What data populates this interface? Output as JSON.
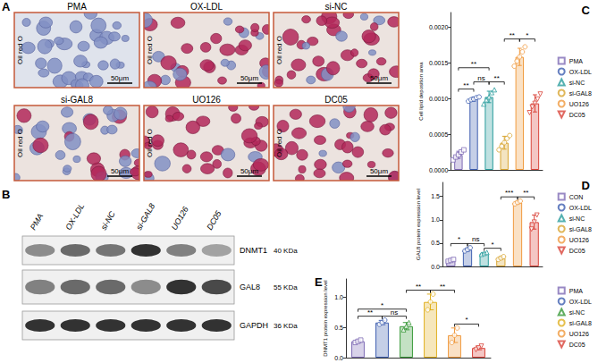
{
  "figure": {
    "A": {
      "label": "A",
      "stain": "Oil red O",
      "scale_bar": "50μm",
      "images": [
        "PMA",
        "OX-LDL",
        "si-NC",
        "si-GAL8",
        "UO126",
        "DC05"
      ]
    },
    "B": {
      "label": "B",
      "lanes": [
        "PMA",
        "OX-LDL",
        "si-NC",
        "si-GAL8",
        "UO126",
        "DC05"
      ],
      "bands": [
        {
          "protein": "DNMT1",
          "size": "40 KDa"
        },
        {
          "protein": "GAL8",
          "size": "55 KDa"
        },
        {
          "protein": "GAPDH",
          "size": "36 KDa"
        }
      ]
    }
  },
  "chart_data": [
    {
      "label": "C",
      "type": "bar",
      "y_label": "Cell lipid deposition area",
      "categories": [
        "PMA",
        "OX-LDL",
        "si-NC",
        "si-GAL8",
        "UO126",
        "DC05"
      ],
      "values": [
        0.00021,
        0.00099,
        0.00102,
        0.00038,
        0.00158,
        0.00093
      ],
      "errors": [
        5e-05,
        3e-05,
        8e-05,
        9e-05,
        0.00012,
        0.00012
      ],
      "points": [
        [
          0.00014,
          0.00018,
          0.00021,
          0.00025,
          0.00028
        ],
        [
          0.00096,
          0.00098,
          0.00099,
          0.00101,
          0.00102
        ],
        [
          0.00092,
          0.00098,
          0.00102,
          0.00108,
          0.00112
        ],
        [
          0.00028,
          0.00033,
          0.00038,
          0.00044,
          0.00048
        ],
        [
          0.00145,
          0.00152,
          0.00158,
          0.00165,
          0.00172
        ],
        [
          0.0008,
          0.00088,
          0.00093,
          0.00099,
          0.00106
        ]
      ],
      "colors": [
        "#7f6bb5",
        "#3f5fb0",
        "#2a9d9d",
        "#d8a531",
        "#f09a3e",
        "#d9433a"
      ],
      "markers": [
        "square",
        "circle",
        "triangle",
        "circle",
        "circle",
        "triangle-down"
      ],
      "ylim": [
        0,
        0.0022
      ],
      "yticks": [
        {
          "value": 0,
          "label": "0.0000"
        },
        0.0005,
        {
          "value": 0.001,
          "label": "0.0010"
        },
        0.0015,
        {
          "value": 0.002,
          "label": "0.0020"
        }
      ],
      "significance": [
        {
          "from": "PMA",
          "to": "OX-LDL",
          "label": "**"
        },
        {
          "from": "OX-LDL",
          "to": "si-NC",
          "label": "ns"
        },
        {
          "from": "PMA",
          "to": "si-NC",
          "label": "**"
        },
        {
          "from": "si-NC",
          "to": "si-GAL8",
          "label": "**"
        },
        {
          "from": "si-GAL8",
          "to": "UO126",
          "label": "**"
        },
        {
          "from": "UO126",
          "to": "DC05",
          "label": "*"
        }
      ],
      "legend": "right",
      "grid": false,
      "tick_labels": "y"
    },
    {
      "label": "D",
      "type": "bar",
      "y_label": "GAL8 protein expression level",
      "categories": [
        "CON",
        "OX-LDL",
        "si-NC",
        "si-GAL8",
        "UO126",
        "DC05"
      ],
      "values": [
        0.13,
        0.36,
        0.28,
        0.18,
        1.37,
        0.95
      ],
      "errors": [
        0.02,
        0.035,
        0.02,
        0.03,
        0.03,
        0.15
      ],
      "points": [
        [
          0.11,
          0.13,
          0.15
        ],
        [
          0.33,
          0.36,
          0.4
        ],
        [
          0.26,
          0.28,
          0.3
        ],
        [
          0.15,
          0.18,
          0.21
        ],
        [
          1.34,
          1.37,
          1.4
        ],
        [
          0.8,
          0.95,
          1.1
        ]
      ],
      "colors": [
        "#7f6bb5",
        "#3f5fb0",
        "#2a9d9d",
        "#d8a531",
        "#f09a3e",
        "#d9433a"
      ],
      "markers": [
        "square",
        "circle",
        "triangle",
        "circle",
        "circle",
        "triangle-down"
      ],
      "ylim": [
        0,
        1.8
      ],
      "yticks": [
        {
          "value": 0,
          "label": "0.0"
        },
        0.5,
        {
          "value": 1,
          "label": "1.0"
        },
        1.5
      ],
      "significance": [
        {
          "from": "CON",
          "to": "OX-LDL",
          "label": "*"
        },
        {
          "from": "OX-LDL",
          "to": "si-NC",
          "label": "ns"
        },
        {
          "from": "si-NC",
          "to": "si-GAL8",
          "label": "*"
        },
        {
          "from": "si-GAL8",
          "to": "UO126",
          "label": "***"
        },
        {
          "from": "UO126",
          "to": "DC05",
          "label": "**"
        }
      ],
      "legend": "right",
      "grid": false,
      "tick_labels": "y"
    },
    {
      "label": "E",
      "type": "bar",
      "y_label": "DNMT1 protein expression level",
      "categories": [
        "PMA",
        "OX-LDL",
        "si-NC",
        "si-GAL8",
        "UO126",
        "DC05"
      ],
      "values": [
        0.27,
        0.58,
        0.52,
        0.92,
        0.37,
        0.16
      ],
      "errors": [
        0.02,
        0.035,
        0.06,
        0.13,
        0.12,
        0.03
      ],
      "points": [
        [
          0.25,
          0.27,
          0.29
        ],
        [
          0.55,
          0.58,
          0.62
        ],
        [
          0.46,
          0.52,
          0.58
        ],
        [
          0.79,
          0.92,
          1.05
        ],
        [
          0.25,
          0.37,
          0.49
        ],
        [
          0.13,
          0.16,
          0.19
        ]
      ],
      "colors": [
        "#7f6bb5",
        "#3f5fb0",
        "#3a9a3a",
        "#e0b020",
        "#f09a3e",
        "#d9433a"
      ],
      "markers": [
        "square",
        "circle",
        "triangle",
        "circle",
        "circle",
        "triangle-down"
      ],
      "ylim": [
        0,
        1.3
      ],
      "yticks": [
        {
          "value": 0,
          "label": "0.0"
        },
        0.5,
        {
          "value": 1,
          "label": "1.0"
        }
      ],
      "significance": [
        {
          "from": "PMA",
          "to": "OX-LDL",
          "label": "**"
        },
        {
          "from": "OX-LDL",
          "to": "si-NC",
          "label": "ns"
        },
        {
          "from": "PMA",
          "to": "si-NC",
          "label": "*"
        },
        {
          "from": "si-NC",
          "to": "si-GAL8",
          "label": "**"
        },
        {
          "from": "si-GAL8",
          "to": "UO126",
          "label": "**"
        },
        {
          "from": "UO126",
          "to": "DC05",
          "label": "*"
        }
      ],
      "legend": "right",
      "grid": false,
      "tick_labels": "y"
    }
  ]
}
